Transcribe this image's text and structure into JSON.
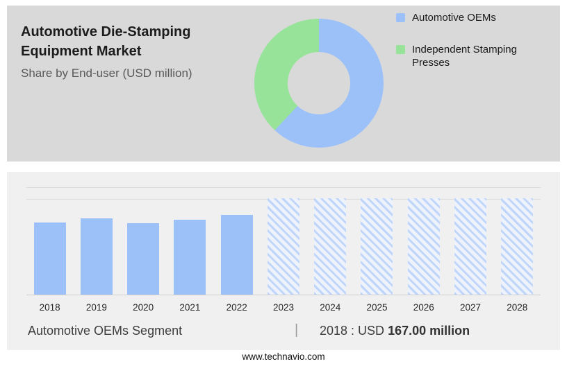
{
  "header": {
    "title": "Automotive Die-Stamping Equipment Market",
    "subtitle": "Share by End-user (USD million)"
  },
  "legend": {
    "items": [
      {
        "label": "Automotive OEMs",
        "color": "#9CC1F8"
      },
      {
        "label": "Independent Stamping Presses",
        "color": "#98E39A"
      }
    ]
  },
  "chart_data": [
    {
      "type": "pie",
      "subtype": "donut",
      "title": "Share by End-user (USD million)",
      "legend_position": "right",
      "slices": [
        {
          "label": "Automotive OEMs",
          "share_pct": 62,
          "color": "#9CC1F8"
        },
        {
          "label": "Independent Stamping Presses",
          "share_pct": 38,
          "color": "#98E39A"
        }
      ]
    },
    {
      "type": "bar",
      "categories": [
        "2018",
        "2019",
        "2020",
        "2021",
        "2022",
        "2023",
        "2024",
        "2025",
        "2026",
        "2027",
        "2028"
      ],
      "series": [
        {
          "name": "Automotive OEMs",
          "values": [
            167,
            176,
            165,
            173,
            185,
            222,
            222,
            222,
            222,
            222,
            222
          ]
        }
      ],
      "unit": "USD million",
      "ylim": [
        0,
        250
      ],
      "grid": true,
      "bar_color": "#9CC1F8",
      "forecast_from": "2023",
      "forecast_style": "hatched"
    }
  ],
  "footer": {
    "segment_label": "Automotive OEMs Segment",
    "separator": "|",
    "stat_prefix": "2018 : USD",
    "stat_value": "167.00 million",
    "website": "www.technavio.com"
  },
  "colors": {
    "panel_top": "#D9D9D9",
    "panel_bottom": "#F0F0F0",
    "blue": "#9CC1F8",
    "green": "#98E39A"
  }
}
